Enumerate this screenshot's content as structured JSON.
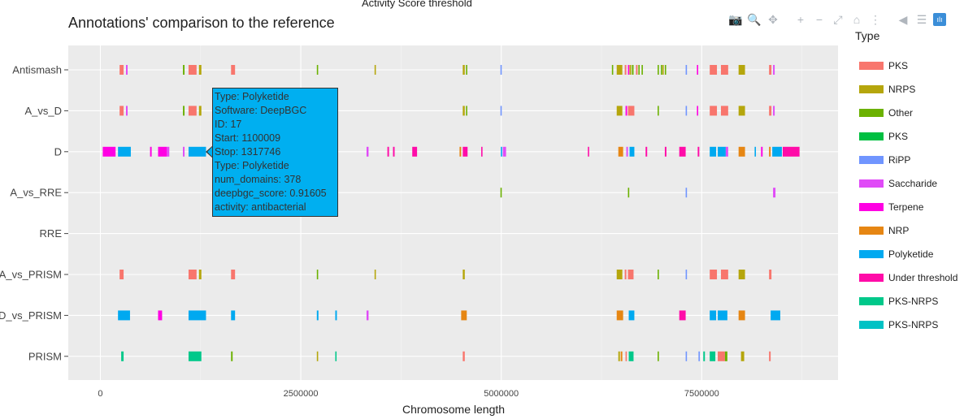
{
  "clipped_top_text": "Activity Score threshold",
  "title": "Annotations' comparison to the reference",
  "modebar": {
    "buttons": [
      {
        "name": "camera-icon",
        "glyph": "📷"
      },
      {
        "name": "zoom-icon",
        "glyph": "🔍"
      },
      {
        "name": "pan-icon",
        "glyph": "✥"
      },
      {
        "name": "zoom-in-icon",
        "glyph": "+"
      },
      {
        "name": "zoom-out-icon",
        "glyph": "−"
      },
      {
        "name": "autoscale-icon",
        "glyph": "⤢"
      },
      {
        "name": "home-icon",
        "glyph": "⌂"
      },
      {
        "name": "spike-lines-icon",
        "glyph": "⋮"
      },
      {
        "name": "hover-closest-icon",
        "glyph": "◀"
      },
      {
        "name": "hover-compare-icon",
        "glyph": "☰"
      },
      {
        "name": "plotly-logo-icon",
        "glyph": "ılı"
      }
    ]
  },
  "legend": {
    "title": "Type",
    "items": [
      {
        "label": "PKS",
        "color": "#F8766D"
      },
      {
        "label": "NRPS",
        "color": "#B5A60C"
      },
      {
        "label": "Other",
        "color": "#6BB100"
      },
      {
        "label": "PKS",
        "color": "#00BF41"
      },
      {
        "label": "RiPP",
        "color": "#7095FF"
      },
      {
        "label": "Saccharide",
        "color": "#E04BF7"
      },
      {
        "label": "Terpene",
        "color": "#FF00E3"
      },
      {
        "label": "NRP",
        "color": "#E68613"
      },
      {
        "label": "Polyketide",
        "color": "#00A9F0"
      },
      {
        "label": "Under threshold",
        "color": "#FF0CA8"
      },
      {
        "label": "PKS-NRPS",
        "color": "#00C88A"
      },
      {
        "label": "PKS-NRPS",
        "color": "#00C2C5"
      }
    ]
  },
  "tooltip": {
    "lines": [
      "Type: Polyketide",
      "Software: DeepBGC",
      "ID:  17",
      "Start: 1100009",
      "Stop: 1317746",
      "Type: Polyketide",
      "num_domains: 378",
      "deepbgc_score: 0.91605",
      "activity: antibacterial"
    ]
  },
  "chart_data": {
    "type": "timeline",
    "xlabel": "Chromosome length",
    "ylabel": "",
    "xlim": [
      -400000,
      9200000
    ],
    "xticks": [
      0,
      2500000,
      5000000,
      7500000
    ],
    "xtick_labels": [
      "0",
      "2500000",
      "5000000",
      "7500000"
    ],
    "categories": [
      "Antismash",
      "A_vs_D",
      "D",
      "A_vs_RRE",
      "RRE",
      "A_vs_PRISM",
      "D_vs_PRISM",
      "PRISM"
    ],
    "grid": true,
    "legend_position": "right",
    "background": "#EBEBEB",
    "segments": [
      {
        "row": "Antismash",
        "start": 240000,
        "stop": 290000,
        "type": "PKS"
      },
      {
        "row": "Antismash",
        "start": 320000,
        "stop": 340000,
        "type": "Saccharide"
      },
      {
        "row": "Antismash",
        "start": 1030000,
        "stop": 1050000,
        "type": "Other"
      },
      {
        "row": "Antismash",
        "start": 1100000,
        "stop": 1200000,
        "type": "PKS"
      },
      {
        "row": "Antismash",
        "start": 1230000,
        "stop": 1260000,
        "type": "NRPS"
      },
      {
        "row": "Antismash",
        "start": 1630000,
        "stop": 1680000,
        "type": "PKS"
      },
      {
        "row": "Antismash",
        "start": 2700000,
        "stop": 2710000,
        "type": "Other"
      },
      {
        "row": "Antismash",
        "start": 3420000,
        "stop": 3430000,
        "type": "NRPS"
      },
      {
        "row": "Antismash",
        "start": 4520000,
        "stop": 4545000,
        "type": "NRPS"
      },
      {
        "row": "Antismash",
        "start": 4560000,
        "stop": 4575000,
        "type": "Other"
      },
      {
        "row": "Antismash",
        "start": 4990000,
        "stop": 5000000,
        "type": "RiPP"
      },
      {
        "row": "Antismash",
        "start": 6380000,
        "stop": 6395000,
        "type": "Other"
      },
      {
        "row": "Antismash",
        "start": 6440000,
        "stop": 6510000,
        "type": "NRPS"
      },
      {
        "row": "Antismash",
        "start": 6540000,
        "stop": 6560000,
        "type": "PKS"
      },
      {
        "row": "Antismash",
        "start": 6580000,
        "stop": 6590000,
        "type": "Terpene"
      },
      {
        "row": "Antismash",
        "start": 6600000,
        "stop": 6620000,
        "type": "NRPS"
      },
      {
        "row": "Antismash",
        "start": 6630000,
        "stop": 6650000,
        "type": "Other"
      },
      {
        "row": "Antismash",
        "start": 6680000,
        "stop": 6700000,
        "type": "PKS"
      },
      {
        "row": "Antismash",
        "start": 6710000,
        "stop": 6720000,
        "type": "Other"
      },
      {
        "row": "Antismash",
        "start": 6750000,
        "stop": 6765000,
        "type": "Other"
      },
      {
        "row": "Antismash",
        "start": 6950000,
        "stop": 6965000,
        "type": "Other"
      },
      {
        "row": "Antismash",
        "start": 6990000,
        "stop": 7000000,
        "type": "Other"
      },
      {
        "row": "Antismash",
        "start": 7010000,
        "stop": 7020000,
        "type": "NRPS"
      },
      {
        "row": "Antismash",
        "start": 7040000,
        "stop": 7050000,
        "type": "Other"
      },
      {
        "row": "Antismash",
        "start": 7300000,
        "stop": 7315000,
        "type": "RiPP"
      },
      {
        "row": "Antismash",
        "start": 7440000,
        "stop": 7455000,
        "type": "Terpene"
      },
      {
        "row": "Antismash",
        "start": 7600000,
        "stop": 7690000,
        "type": "PKS"
      },
      {
        "row": "Antismash",
        "start": 7740000,
        "stop": 7830000,
        "type": "PKS"
      },
      {
        "row": "Antismash",
        "start": 7960000,
        "stop": 8040000,
        "type": "NRPS"
      },
      {
        "row": "Antismash",
        "start": 8340000,
        "stop": 8370000,
        "type": "PKS"
      },
      {
        "row": "Antismash",
        "start": 8390000,
        "stop": 8410000,
        "type": "Saccharide"
      },
      {
        "row": "A_vs_D",
        "start": 240000,
        "stop": 290000,
        "type": "PKS"
      },
      {
        "row": "A_vs_D",
        "start": 320000,
        "stop": 340000,
        "type": "Saccharide"
      },
      {
        "row": "A_vs_D",
        "start": 1030000,
        "stop": 1050000,
        "type": "Other"
      },
      {
        "row": "A_vs_D",
        "start": 1100000,
        "stop": 1200000,
        "type": "PKS"
      },
      {
        "row": "A_vs_D",
        "start": 1230000,
        "stop": 1260000,
        "type": "NRPS"
      },
      {
        "row": "A_vs_D",
        "start": 4520000,
        "stop": 4545000,
        "type": "NRPS"
      },
      {
        "row": "A_vs_D",
        "start": 4560000,
        "stop": 4575000,
        "type": "Other"
      },
      {
        "row": "A_vs_D",
        "start": 4990000,
        "stop": 5000000,
        "type": "RiPP"
      },
      {
        "row": "A_vs_D",
        "start": 6440000,
        "stop": 6510000,
        "type": "NRPS"
      },
      {
        "row": "A_vs_D",
        "start": 6550000,
        "stop": 6570000,
        "type": "Terpene"
      },
      {
        "row": "A_vs_D",
        "start": 6580000,
        "stop": 6660000,
        "type": "PKS"
      },
      {
        "row": "A_vs_D",
        "start": 6950000,
        "stop": 6965000,
        "type": "Other"
      },
      {
        "row": "A_vs_D",
        "start": 7300000,
        "stop": 7315000,
        "type": "RiPP"
      },
      {
        "row": "A_vs_D",
        "start": 7440000,
        "stop": 7455000,
        "type": "Terpene"
      },
      {
        "row": "A_vs_D",
        "start": 7600000,
        "stop": 7690000,
        "type": "PKS"
      },
      {
        "row": "A_vs_D",
        "start": 7740000,
        "stop": 7830000,
        "type": "PKS"
      },
      {
        "row": "A_vs_D",
        "start": 7960000,
        "stop": 8040000,
        "type": "NRPS"
      },
      {
        "row": "A_vs_D",
        "start": 8340000,
        "stop": 8370000,
        "type": "PKS"
      },
      {
        "row": "A_vs_D",
        "start": 8390000,
        "stop": 8410000,
        "type": "Saccharide"
      },
      {
        "row": "D",
        "start": 30000,
        "stop": 190000,
        "type": "Terpene"
      },
      {
        "row": "D",
        "start": 220000,
        "stop": 380000,
        "type": "Polyketide"
      },
      {
        "row": "D",
        "start": 620000,
        "stop": 640000,
        "type": "Terpene"
      },
      {
        "row": "D",
        "start": 720000,
        "stop": 830000,
        "type": "Terpene"
      },
      {
        "row": "D",
        "start": 830000,
        "stop": 860000,
        "type": "Saccharide"
      },
      {
        "row": "D",
        "start": 1030000,
        "stop": 1050000,
        "type": "Saccharide"
      },
      {
        "row": "D",
        "start": 1100009,
        "stop": 1317746,
        "type": "Polyketide"
      },
      {
        "row": "D",
        "start": 2930000,
        "stop": 2950000,
        "type": "Polyketide"
      },
      {
        "row": "D",
        "start": 3320000,
        "stop": 3345000,
        "type": "Saccharide"
      },
      {
        "row": "D",
        "start": 3580000,
        "stop": 3600000,
        "type": "Under threshold"
      },
      {
        "row": "D",
        "start": 3650000,
        "stop": 3670000,
        "type": "Under threshold"
      },
      {
        "row": "D",
        "start": 3890000,
        "stop": 3950000,
        "type": "Under threshold"
      },
      {
        "row": "D",
        "start": 4480000,
        "stop": 4500000,
        "type": "NRP"
      },
      {
        "row": "D",
        "start": 4520000,
        "stop": 4580000,
        "type": "Under threshold"
      },
      {
        "row": "D",
        "start": 4750000,
        "stop": 4765000,
        "type": "Under threshold"
      },
      {
        "row": "D",
        "start": 4995000,
        "stop": 5010000,
        "type": "Polyketide"
      },
      {
        "row": "D",
        "start": 5020000,
        "stop": 5060000,
        "type": "Saccharide"
      },
      {
        "row": "D",
        "start": 6080000,
        "stop": 6095000,
        "type": "Under threshold"
      },
      {
        "row": "D",
        "start": 6460000,
        "stop": 6520000,
        "type": "NRP"
      },
      {
        "row": "D",
        "start": 6560000,
        "stop": 6580000,
        "type": "Saccharide"
      },
      {
        "row": "D",
        "start": 6600000,
        "stop": 6660000,
        "type": "Polyketide"
      },
      {
        "row": "D",
        "start": 6800000,
        "stop": 6820000,
        "type": "Under threshold"
      },
      {
        "row": "D",
        "start": 7040000,
        "stop": 7060000,
        "type": "Under threshold"
      },
      {
        "row": "D",
        "start": 7220000,
        "stop": 7300000,
        "type": "Under threshold"
      },
      {
        "row": "D",
        "start": 7450000,
        "stop": 7470000,
        "type": "Under threshold"
      },
      {
        "row": "D",
        "start": 7600000,
        "stop": 7680000,
        "type": "Polyketide"
      },
      {
        "row": "D",
        "start": 7700000,
        "stop": 7800000,
        "type": "Polyketide"
      },
      {
        "row": "D",
        "start": 7800000,
        "stop": 7830000,
        "type": "Saccharide"
      },
      {
        "row": "D",
        "start": 7960000,
        "stop": 8040000,
        "type": "NRP"
      },
      {
        "row": "D",
        "start": 8160000,
        "stop": 8175000,
        "type": "Polyketide"
      },
      {
        "row": "D",
        "start": 8240000,
        "stop": 8260000,
        "type": "Terpene"
      },
      {
        "row": "D",
        "start": 8340000,
        "stop": 8360000,
        "type": "NRP"
      },
      {
        "row": "D",
        "start": 8380000,
        "stop": 8500000,
        "type": "Polyketide"
      },
      {
        "row": "D",
        "start": 8510000,
        "stop": 8720000,
        "type": "Under threshold"
      },
      {
        "row": "A_vs_RRE",
        "start": 4990000,
        "stop": 5005000,
        "type": "Other"
      },
      {
        "row": "A_vs_RRE",
        "start": 6580000,
        "stop": 6595000,
        "type": "Other"
      },
      {
        "row": "A_vs_RRE",
        "start": 7300000,
        "stop": 7315000,
        "type": "RiPP"
      },
      {
        "row": "A_vs_RRE",
        "start": 8390000,
        "stop": 8420000,
        "type": "Saccharide"
      },
      {
        "row": "A_vs_PRISM",
        "start": 240000,
        "stop": 290000,
        "type": "PKS"
      },
      {
        "row": "A_vs_PRISM",
        "start": 1100000,
        "stop": 1200000,
        "type": "PKS"
      },
      {
        "row": "A_vs_PRISM",
        "start": 1230000,
        "stop": 1260000,
        "type": "NRPS"
      },
      {
        "row": "A_vs_PRISM",
        "start": 1630000,
        "stop": 1680000,
        "type": "PKS"
      },
      {
        "row": "A_vs_PRISM",
        "start": 2700000,
        "stop": 2710000,
        "type": "Other"
      },
      {
        "row": "A_vs_PRISM",
        "start": 3420000,
        "stop": 3430000,
        "type": "NRPS"
      },
      {
        "row": "A_vs_PRISM",
        "start": 4520000,
        "stop": 4545000,
        "type": "NRPS"
      },
      {
        "row": "A_vs_PRISM",
        "start": 6440000,
        "stop": 6510000,
        "type": "NRPS"
      },
      {
        "row": "A_vs_PRISM",
        "start": 6540000,
        "stop": 6560000,
        "type": "PKS"
      },
      {
        "row": "A_vs_PRISM",
        "start": 6580000,
        "stop": 6650000,
        "type": "PKS"
      },
      {
        "row": "A_vs_PRISM",
        "start": 6950000,
        "stop": 6965000,
        "type": "Other"
      },
      {
        "row": "A_vs_PRISM",
        "start": 7300000,
        "stop": 7315000,
        "type": "RiPP"
      },
      {
        "row": "A_vs_PRISM",
        "start": 7600000,
        "stop": 7690000,
        "type": "PKS"
      },
      {
        "row": "A_vs_PRISM",
        "start": 7740000,
        "stop": 7830000,
        "type": "PKS"
      },
      {
        "row": "A_vs_PRISM",
        "start": 7960000,
        "stop": 8040000,
        "type": "NRPS"
      },
      {
        "row": "A_vs_PRISM",
        "start": 8340000,
        "stop": 8370000,
        "type": "PKS"
      },
      {
        "row": "D_vs_PRISM",
        "start": 220000,
        "stop": 370000,
        "type": "Polyketide"
      },
      {
        "row": "D_vs_PRISM",
        "start": 720000,
        "stop": 770000,
        "type": "Terpene"
      },
      {
        "row": "D_vs_PRISM",
        "start": 1100009,
        "stop": 1317746,
        "type": "Polyketide"
      },
      {
        "row": "D_vs_PRISM",
        "start": 1630000,
        "stop": 1680000,
        "type": "Polyketide"
      },
      {
        "row": "D_vs_PRISM",
        "start": 2700000,
        "stop": 2720000,
        "type": "Polyketide"
      },
      {
        "row": "D_vs_PRISM",
        "start": 2930000,
        "stop": 2950000,
        "type": "Polyketide"
      },
      {
        "row": "D_vs_PRISM",
        "start": 3320000,
        "stop": 3345000,
        "type": "Saccharide"
      },
      {
        "row": "D_vs_PRISM",
        "start": 4500000,
        "stop": 4570000,
        "type": "NRP"
      },
      {
        "row": "D_vs_PRISM",
        "start": 6440000,
        "stop": 6520000,
        "type": "NRP"
      },
      {
        "row": "D_vs_PRISM",
        "start": 6590000,
        "stop": 6660000,
        "type": "Polyketide"
      },
      {
        "row": "D_vs_PRISM",
        "start": 7220000,
        "stop": 7300000,
        "type": "Under threshold"
      },
      {
        "row": "D_vs_PRISM",
        "start": 7600000,
        "stop": 7680000,
        "type": "Polyketide"
      },
      {
        "row": "D_vs_PRISM",
        "start": 7700000,
        "stop": 7820000,
        "type": "Polyketide"
      },
      {
        "row": "D_vs_PRISM",
        "start": 7960000,
        "stop": 8040000,
        "type": "NRP"
      },
      {
        "row": "D_vs_PRISM",
        "start": 8360000,
        "stop": 8480000,
        "type": "Polyketide"
      },
      {
        "row": "PRISM",
        "start": 260000,
        "stop": 290000,
        "type": "PKS-NRPS"
      },
      {
        "row": "PRISM",
        "start": 1100000,
        "stop": 1260000,
        "type": "PKS-NRPS"
      },
      {
        "row": "PRISM",
        "start": 1630000,
        "stop": 1650000,
        "type": "Other"
      },
      {
        "row": "PRISM",
        "start": 2700000,
        "stop": 2710000,
        "type": "NRPS"
      },
      {
        "row": "PRISM",
        "start": 2930000,
        "stop": 2945000,
        "type": "PKS-NRPS"
      },
      {
        "row": "PRISM",
        "start": 4520000,
        "stop": 4545000,
        "type": "PKS"
      },
      {
        "row": "PRISM",
        "start": 6460000,
        "stop": 6480000,
        "type": "NRPS"
      },
      {
        "row": "PRISM",
        "start": 6490000,
        "stop": 6510000,
        "type": "NRP"
      },
      {
        "row": "PRISM",
        "start": 6550000,
        "stop": 6560000,
        "type": "PKS"
      },
      {
        "row": "PRISM",
        "start": 6590000,
        "stop": 6650000,
        "type": "PKS-NRPS"
      },
      {
        "row": "PRISM",
        "start": 6950000,
        "stop": 6965000,
        "type": "Other"
      },
      {
        "row": "PRISM",
        "start": 7300000,
        "stop": 7315000,
        "type": "RiPP"
      },
      {
        "row": "PRISM",
        "start": 7460000,
        "stop": 7475000,
        "type": "RiPP"
      },
      {
        "row": "PRISM",
        "start": 7520000,
        "stop": 7540000,
        "type": "PKS-NRPS"
      },
      {
        "row": "PRISM",
        "start": 7600000,
        "stop": 7670000,
        "type": "PKS-NRPS"
      },
      {
        "row": "PRISM",
        "start": 7700000,
        "stop": 7790000,
        "type": "PKS"
      },
      {
        "row": "PRISM",
        "start": 7790000,
        "stop": 7820000,
        "type": "Other"
      },
      {
        "row": "PRISM",
        "start": 7990000,
        "stop": 8030000,
        "type": "NRPS"
      },
      {
        "row": "PRISM",
        "start": 8340000,
        "stop": 8360000,
        "type": "PKS"
      }
    ]
  }
}
